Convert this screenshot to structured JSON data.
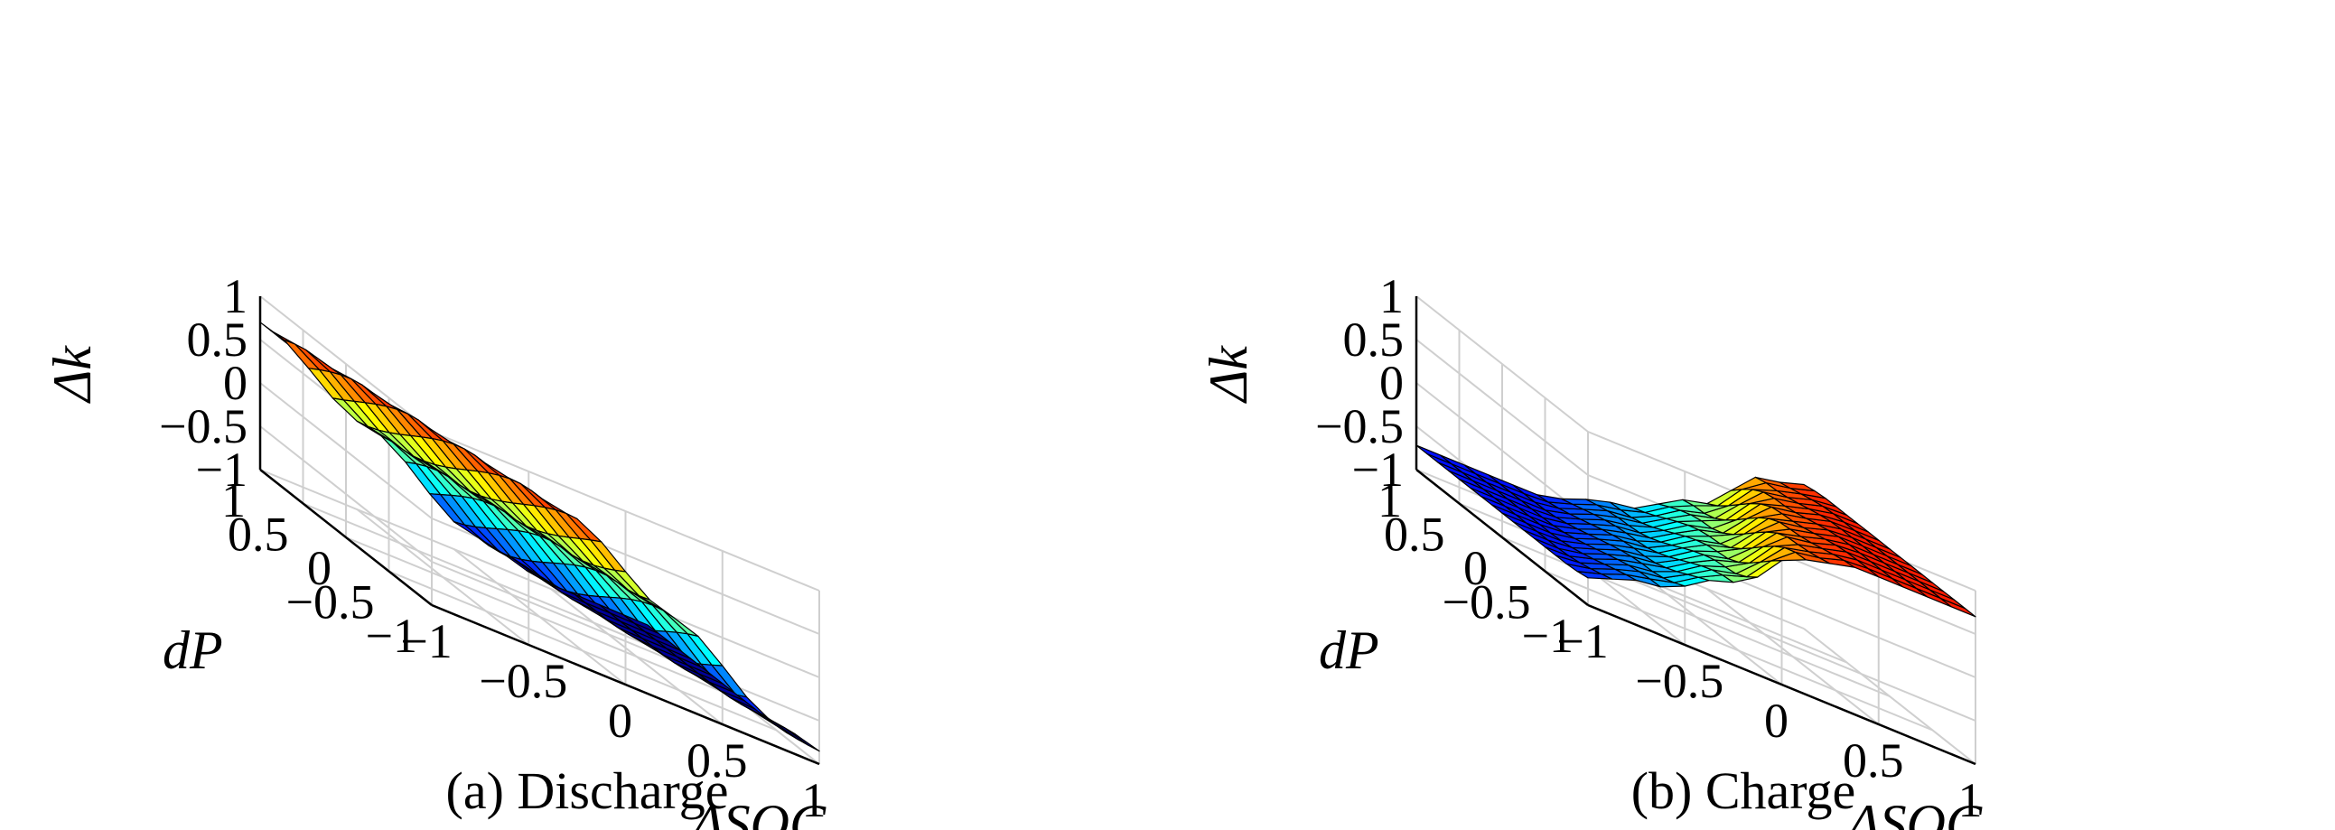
{
  "chart_data": [
    {
      "type": "surface",
      "caption": "(a) Discharge",
      "zlabel": "Δk",
      "ylabel": "dP",
      "xlabel": "ΔSOC",
      "xlim": [
        -1,
        1
      ],
      "ylim": [
        -1,
        1
      ],
      "zlim": [
        -1,
        1
      ],
      "xticks": [
        "−1",
        "−0.5",
        "0",
        "0.5",
        "1"
      ],
      "yticks": [
        "−1",
        "−0.5",
        "0",
        "0.5",
        "1"
      ],
      "zticks": [
        "−1",
        "−0.5",
        "0",
        "0.5",
        "1"
      ],
      "grid": true,
      "colormap": "jet",
      "n": 16,
      "transition": "ΔSOC + 0.35·dP",
      "levels": [
        {
          "u": -2.0,
          "z": 0.7
        },
        {
          "u": -0.65,
          "z": 0.7
        },
        {
          "u": -0.1,
          "z": 0.0
        },
        {
          "u": 0.45,
          "z": -0.75
        },
        {
          "u": 0.85,
          "z": -0.95
        },
        {
          "u": 2.0,
          "z": -0.97
        }
      ]
    },
    {
      "type": "surface",
      "caption": "(b) Charge",
      "zlabel": "Δk",
      "ylabel": "dP",
      "xlabel": "ΔSOC",
      "xlim": [
        -1,
        1
      ],
      "ylim": [
        -1,
        1
      ],
      "zlim": [
        -1,
        1
      ],
      "xticks": [
        "−1",
        "−0.5",
        "0",
        "0.5",
        "1"
      ],
      "yticks": [
        "−1",
        "−0.5",
        "0",
        "0.5",
        "1"
      ],
      "zticks": [
        "−1",
        "−0.5",
        "0",
        "0.5",
        "1"
      ],
      "grid": true,
      "colormap": "jet",
      "n": 16,
      "transition": "ΔSOC − 0.35·dP",
      "levels": [
        {
          "u": -2.0,
          "z": -0.72
        },
        {
          "u": -0.75,
          "z": -0.72
        },
        {
          "u": -0.3,
          "z": -0.45
        },
        {
          "u": 0.1,
          "z": -0.05
        },
        {
          "u": 0.45,
          "z": 0.55
        },
        {
          "u": 0.75,
          "z": 0.7
        },
        {
          "u": 2.0,
          "z": 0.7
        }
      ]
    }
  ]
}
